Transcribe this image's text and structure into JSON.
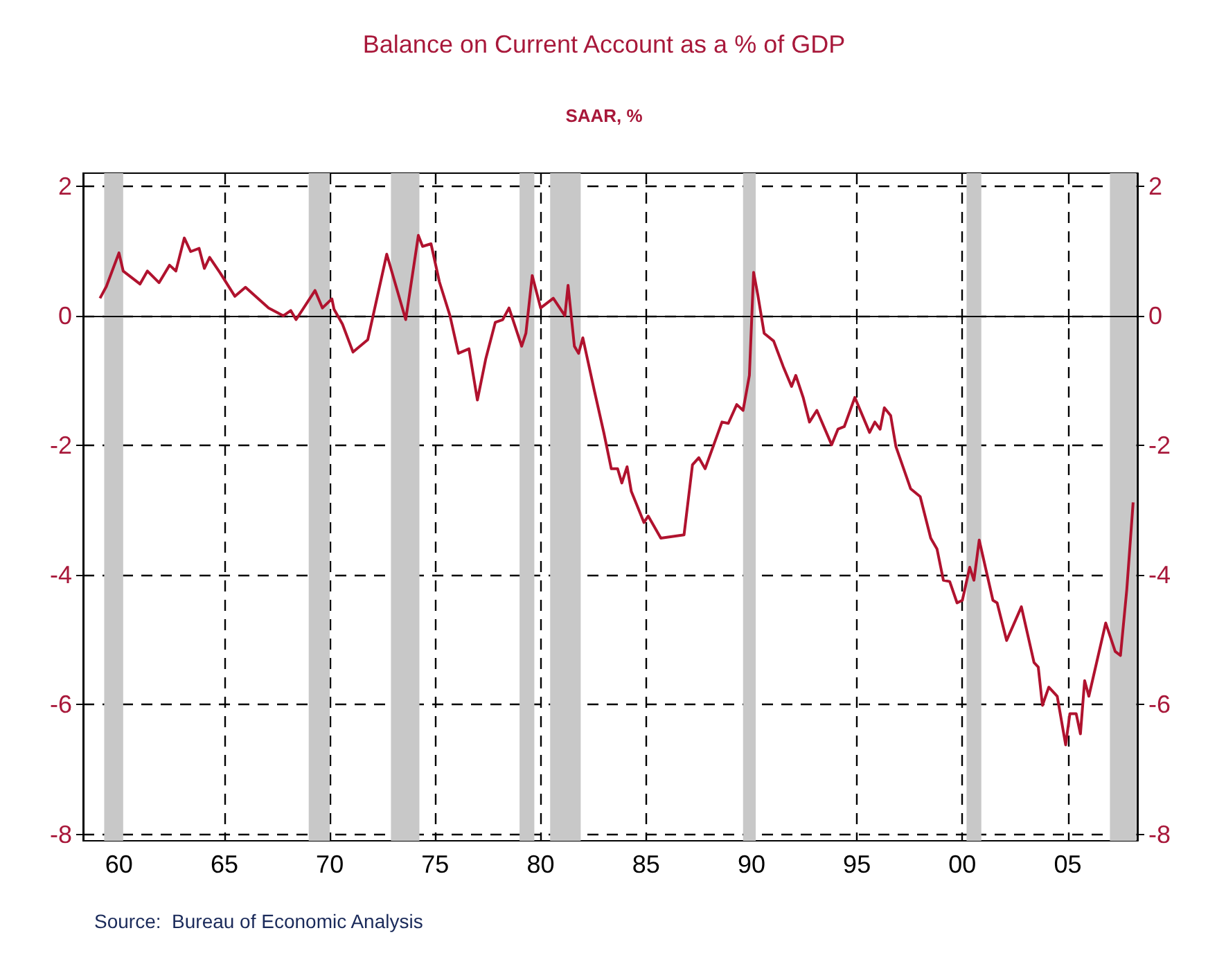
{
  "chart_data": {
    "type": "line",
    "title": "Balance on Current Account as a % of GDP",
    "subtitle": "SAAR, %",
    "annotations": [
      "Source:  Bureau of Economic Analysis"
    ],
    "x": [
      1959.1,
      1959.4,
      1960.0,
      1960.2,
      1961.0,
      1961.35,
      1961.9,
      1962.4,
      1962.7,
      1963.1,
      1963.4,
      1963.8,
      1964.05,
      1964.3,
      1964.8,
      1965.5,
      1966.0,
      1967.1,
      1967.8,
      1968.15,
      1968.4,
      1969.3,
      1969.65,
      1970.1,
      1970.2,
      1970.6,
      1971.1,
      1971.8,
      1972.7,
      1973.6,
      1974.2,
      1974.4,
      1974.8,
      1975.2,
      1975.7,
      1976.1,
      1976.6,
      1977.0,
      1977.4,
      1977.85,
      1978.2,
      1978.5,
      1979.1,
      1979.3,
      1979.6,
      1980.0,
      1980.6,
      1981.15,
      1981.3,
      1981.6,
      1981.8,
      1982.0,
      1982.55,
      1983.0,
      1983.35,
      1983.65,
      1983.85,
      1984.1,
      1984.3,
      1984.9,
      1985.1,
      1985.7,
      1986.8,
      1987.2,
      1987.5,
      1987.8,
      1988.6,
      1988.9,
      1989.3,
      1989.6,
      1989.9,
      1990.1,
      1990.3,
      1990.6,
      1991.05,
      1991.5,
      1991.9,
      1992.1,
      1992.45,
      1992.75,
      1993.1,
      1993.8,
      1994.1,
      1994.4,
      1994.9,
      1995.6,
      1995.85,
      1996.1,
      1996.3,
      1996.6,
      1996.85,
      1997.55,
      1998.0,
      1998.5,
      1998.8,
      1999.1,
      1999.4,
      1999.75,
      2000.0,
      2000.35,
      2000.55,
      2000.8,
      2001.45,
      2001.65,
      2002.1,
      2002.8,
      2003.4,
      2003.6,
      2003.8,
      2004.1,
      2004.5,
      2004.9,
      2005.1,
      2005.4,
      2005.6,
      2005.8,
      2006.0,
      2006.8,
      2007.25,
      2007.5,
      2007.8,
      2008.1
    ],
    "series": [
      {
        "color": "#b0122e",
        "values": [
          0.27,
          0.45,
          0.97,
          0.69,
          0.49,
          0.69,
          0.51,
          0.78,
          0.69,
          1.2,
          0.99,
          1.04,
          0.73,
          0.9,
          0.66,
          0.3,
          0.44,
          0.12,
          0.0,
          0.08,
          -0.06,
          0.39,
          0.12,
          0.26,
          0.1,
          -0.13,
          -0.56,
          -0.37,
          0.95,
          -0.06,
          1.24,
          1.07,
          1.11,
          0.52,
          0.0,
          -0.58,
          -0.51,
          -1.3,
          -0.66,
          -0.1,
          -0.06,
          0.12,
          -0.47,
          -0.27,
          0.62,
          0.12,
          0.27,
          0.0,
          0.47,
          -0.47,
          -0.58,
          -0.34,
          -1.16,
          -1.81,
          -2.36,
          -2.36,
          -2.58,
          -2.33,
          -2.71,
          -3.19,
          -3.09,
          -3.43,
          -3.38,
          -2.3,
          -2.19,
          -2.36,
          -1.64,
          -1.66,
          -1.37,
          -1.46,
          -0.92,
          0.67,
          0.32,
          -0.27,
          -0.39,
          -0.78,
          -1.09,
          -0.92,
          -1.26,
          -1.64,
          -1.46,
          -1.99,
          -1.75,
          -1.71,
          -1.26,
          -1.8,
          -1.64,
          -1.75,
          -1.42,
          -1.54,
          -2.02,
          -2.67,
          -2.79,
          -3.43,
          -3.6,
          -4.08,
          -4.1,
          -4.43,
          -4.39,
          -3.88,
          -4.08,
          -3.46,
          -4.39,
          -4.43,
          -5.01,
          -4.49,
          -5.35,
          -5.42,
          -6.01,
          -5.73,
          -5.87,
          -6.62,
          -6.14,
          -6.14,
          -6.45,
          -5.63,
          -5.87,
          -4.74,
          -5.18,
          -5.24,
          -4.22,
          -2.88
        ]
      }
    ],
    "xlim": [
      1958.3,
      2008.3
    ],
    "xticks": [
      {
        "value": 1960,
        "label": "60"
      },
      {
        "value": 1965,
        "label": "65"
      },
      {
        "value": 1970,
        "label": "70"
      },
      {
        "value": 1975,
        "label": "75"
      },
      {
        "value": 1980,
        "label": "80"
      },
      {
        "value": 1985,
        "label": "85"
      },
      {
        "value": 1990,
        "label": "90"
      },
      {
        "value": 1995,
        "label": "95"
      },
      {
        "value": 2000,
        "label": "00"
      },
      {
        "value": 2005,
        "label": "05"
      }
    ],
    "ylim": [
      -8.1,
      2.2
    ],
    "yticks": [
      -8,
      -6,
      -4,
      -2,
      0,
      2
    ],
    "y2lim": [
      -8.1,
      2.2
    ],
    "y2ticks": [
      -8,
      -6,
      -4,
      -2,
      0,
      2
    ],
    "grid": true,
    "marker": "none",
    "line_style": "solid",
    "ref_lines": [
      {
        "axis": "y",
        "value": 0,
        "color": "#000000",
        "line_style": "solid"
      }
    ],
    "bands": [
      {
        "axis": "x",
        "from": 1959.3,
        "to": 1960.2,
        "color": "#c8c8c8"
      },
      {
        "axis": "x",
        "from": 1969.0,
        "to": 1970.0,
        "color": "#c8c8c8"
      },
      {
        "axis": "x",
        "from": 1972.9,
        "to": 1974.25,
        "color": "#c8c8c8"
      },
      {
        "axis": "x",
        "from": 1979.0,
        "to": 1979.7,
        "color": "#c8c8c8"
      },
      {
        "axis": "x",
        "from": 1980.45,
        "to": 1981.9,
        "color": "#c8c8c8"
      },
      {
        "axis": "x",
        "from": 1989.6,
        "to": 1990.2,
        "color": "#c8c8c8"
      },
      {
        "axis": "x",
        "from": 2000.2,
        "to": 2000.9,
        "color": "#c8c8c8"
      },
      {
        "axis": "x",
        "from": 2007.0,
        "to": 2008.25,
        "color": "#c8c8c8"
      }
    ]
  }
}
